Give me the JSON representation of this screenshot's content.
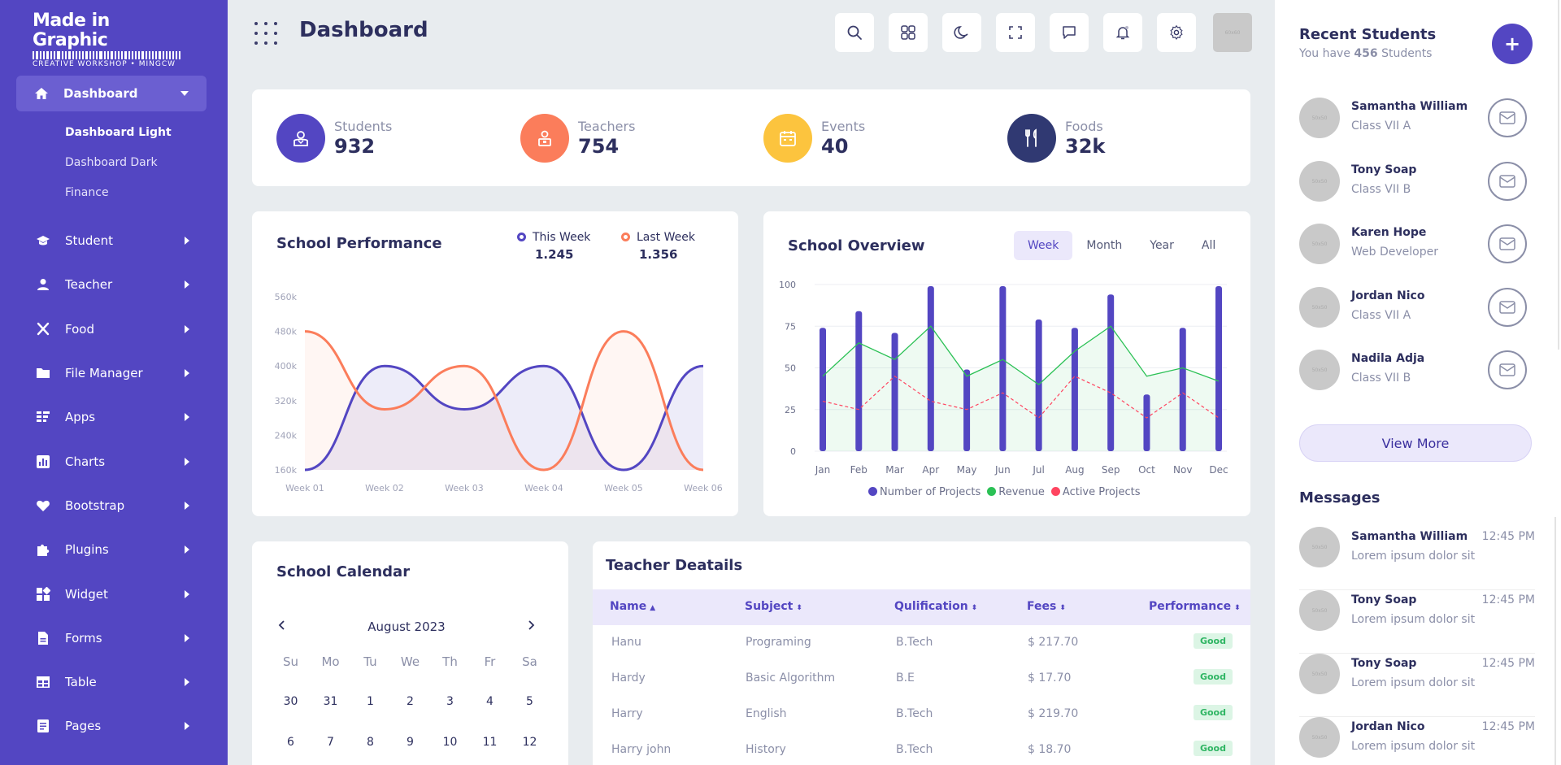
{
  "brand": {
    "title": "Made in Graphic",
    "subtitle": "CREATIVE WORKSHOP • MINGCW"
  },
  "header": {
    "title": "Dashboard",
    "avatar_label": "60x60"
  },
  "sidebar": {
    "active": "Dashboard",
    "sub_items": [
      "Dashboard Light",
      "Dashboard Dark",
      "Finance"
    ],
    "items": [
      "Student",
      "Teacher",
      "Food",
      "File Manager",
      "Apps",
      "Charts",
      "Bootstrap",
      "Plugins",
      "Widget",
      "Forms",
      "Table",
      "Pages"
    ]
  },
  "stats": [
    {
      "label": "Students",
      "value": "932",
      "color": "#5346c2",
      "icon": "student-icon"
    },
    {
      "label": "Teachers",
      "value": "754",
      "color": "#fb7d5b",
      "icon": "teacher-icon"
    },
    {
      "label": "Events",
      "value": "40",
      "color": "#fcc43e",
      "icon": "calendar-icon"
    },
    {
      "label": "Foods",
      "value": "32k",
      "color": "#303972",
      "icon": "fork-knife-icon"
    }
  ],
  "performance": {
    "title": "School Performance",
    "this_week_label": "This Week",
    "this_week_value": "1.245",
    "last_week_label": "Last Week",
    "last_week_value": "1.356"
  },
  "overview": {
    "title": "School Overview",
    "tabs": [
      "Week",
      "Month",
      "Year",
      "All"
    ],
    "legend": [
      "Number of Projects",
      "Revenue",
      "Active Projects"
    ]
  },
  "chart_data": [
    {
      "type": "area",
      "title": "School Performance",
      "categories": [
        "Week 01",
        "Week 02",
        "Week 03",
        "Week 04",
        "Week 05",
        "Week 06"
      ],
      "y_ticks": [
        "560k",
        "480k",
        "400k",
        "320k",
        "240k",
        "160k"
      ],
      "ylim": [
        160,
        560
      ],
      "series": [
        {
          "name": "This Week",
          "color": "#5346c2",
          "values": [
            160,
            400,
            300,
            400,
            160,
            400
          ]
        },
        {
          "name": "Last Week",
          "color": "#fb7d5b",
          "values": [
            480,
            300,
            400,
            160,
            480,
            160
          ]
        }
      ]
    },
    {
      "type": "bar",
      "title": "School Overview",
      "categories": [
        "Jan",
        "Feb",
        "Mar",
        "Apr",
        "May",
        "Jun",
        "Jul",
        "Aug",
        "Sep",
        "Oct",
        "Nov",
        "Dec"
      ],
      "y_ticks": [
        "100",
        "75",
        "50",
        "25",
        "0"
      ],
      "ylim": [
        0,
        100
      ],
      "series": [
        {
          "name": "Number of Projects",
          "color": "#5346c2",
          "values": [
            74,
            84,
            71,
            99,
            49,
            99,
            79,
            74,
            94,
            34,
            74,
            99
          ]
        },
        {
          "name": "Revenue",
          "color": "#2bc155",
          "values": [
            45,
            65,
            55,
            75,
            45,
            55,
            40,
            60,
            75,
            45,
            50,
            42
          ]
        },
        {
          "name": "Active Projects",
          "color": "#ff4560",
          "values": [
            30,
            25,
            45,
            30,
            25,
            35,
            20,
            45,
            35,
            20,
            35,
            20
          ]
        }
      ]
    }
  ],
  "calendar": {
    "title": "School Calendar",
    "month": "August 2023",
    "days_of_week": [
      "Su",
      "Mo",
      "Tu",
      "We",
      "Th",
      "Fr",
      "Sa"
    ],
    "dates": [
      "30",
      "31",
      "1",
      "2",
      "3",
      "4",
      "5",
      "6",
      "7",
      "8",
      "9",
      "10",
      "11",
      "12"
    ]
  },
  "teachers": {
    "title": "Teacher Deatails",
    "columns": [
      "Name",
      "Subject",
      "Qulification",
      "Fees",
      "Performance"
    ],
    "rows": [
      {
        "name": "Hanu",
        "subject": "Programing",
        "qual": "B.Tech",
        "fees": "$ 217.70",
        "perf": "Good"
      },
      {
        "name": "Hardy",
        "subject": "Basic Algorithm",
        "qual": "B.E",
        "fees": "$ 17.70",
        "perf": "Good"
      },
      {
        "name": "Harry",
        "subject": "English",
        "qual": "B.Tech",
        "fees": "$ 219.70",
        "perf": "Good"
      },
      {
        "name": "Harry john",
        "subject": "History",
        "qual": "B.Tech",
        "fees": "$ 18.70",
        "perf": "Good"
      }
    ]
  },
  "recent": {
    "title": "Recent Students",
    "sub_prefix": "You have ",
    "count": "456",
    "sub_suffix": " Students",
    "add_label": "+",
    "view_more": "View More",
    "students": [
      {
        "name": "Samantha William",
        "info": "Class VII A",
        "avatar": "50x50"
      },
      {
        "name": "Tony Soap",
        "info": "Class VII B",
        "avatar": "50x50"
      },
      {
        "name": "Karen Hope",
        "info": "Web Developer",
        "avatar": "50x50"
      },
      {
        "name": "Jordan Nico",
        "info": "Class VII A",
        "avatar": "50x50"
      },
      {
        "name": "Nadila Adja",
        "info": "Class VII B",
        "avatar": "50x50"
      }
    ]
  },
  "messages": {
    "title": "Messages",
    "items": [
      {
        "name": "Samantha William",
        "text": "Lorem ipsum dolor sit",
        "time": "12:45 PM",
        "avatar": "50x50"
      },
      {
        "name": "Tony Soap",
        "text": "Lorem ipsum dolor sit",
        "time": "12:45 PM",
        "avatar": "50x50"
      },
      {
        "name": "Tony Soap",
        "text": "Lorem ipsum dolor sit",
        "time": "12:45 PM",
        "avatar": "50x50"
      },
      {
        "name": "Jordan Nico",
        "text": "Lorem ipsum dolor sit",
        "time": "12:45 PM",
        "avatar": "50x50"
      }
    ]
  }
}
